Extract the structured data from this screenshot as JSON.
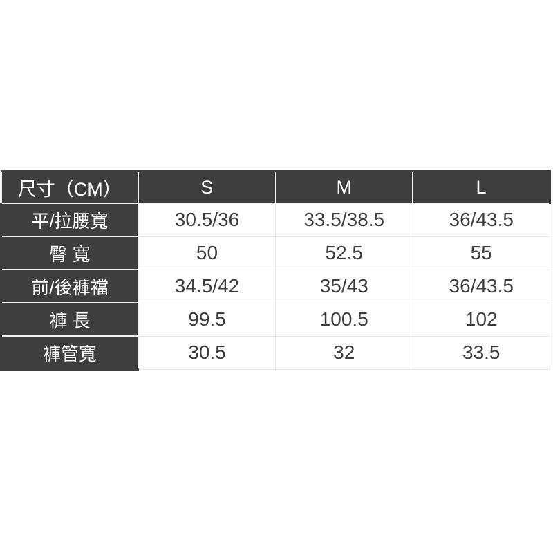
{
  "chart_data": {
    "type": "table",
    "title": "尺寸（CM）",
    "columns": [
      "尺寸（CM）",
      "S",
      "M",
      "L"
    ],
    "rows": [
      [
        "平/拉腰寬",
        "30.5/36",
        "33.5/38.5",
        "36/43.5"
      ],
      [
        "臀 寬",
        "50",
        "52.5",
        "55"
      ],
      [
        "前/後褲襠",
        "34.5/42",
        "35/43",
        "36/43.5"
      ],
      [
        "褲 長",
        "99.5",
        "100.5",
        "102"
      ],
      [
        "褲管寬",
        "30.5",
        "32",
        "33.5"
      ]
    ],
    "layout": {
      "header_fill": "#3e3e3e",
      "header_text_color": "#ffffff",
      "value_text_color": "#3d3d3d",
      "grid_light": "#e4e4e4",
      "grid_white": "#f2f2f2",
      "page_background": "#ffffff"
    }
  }
}
